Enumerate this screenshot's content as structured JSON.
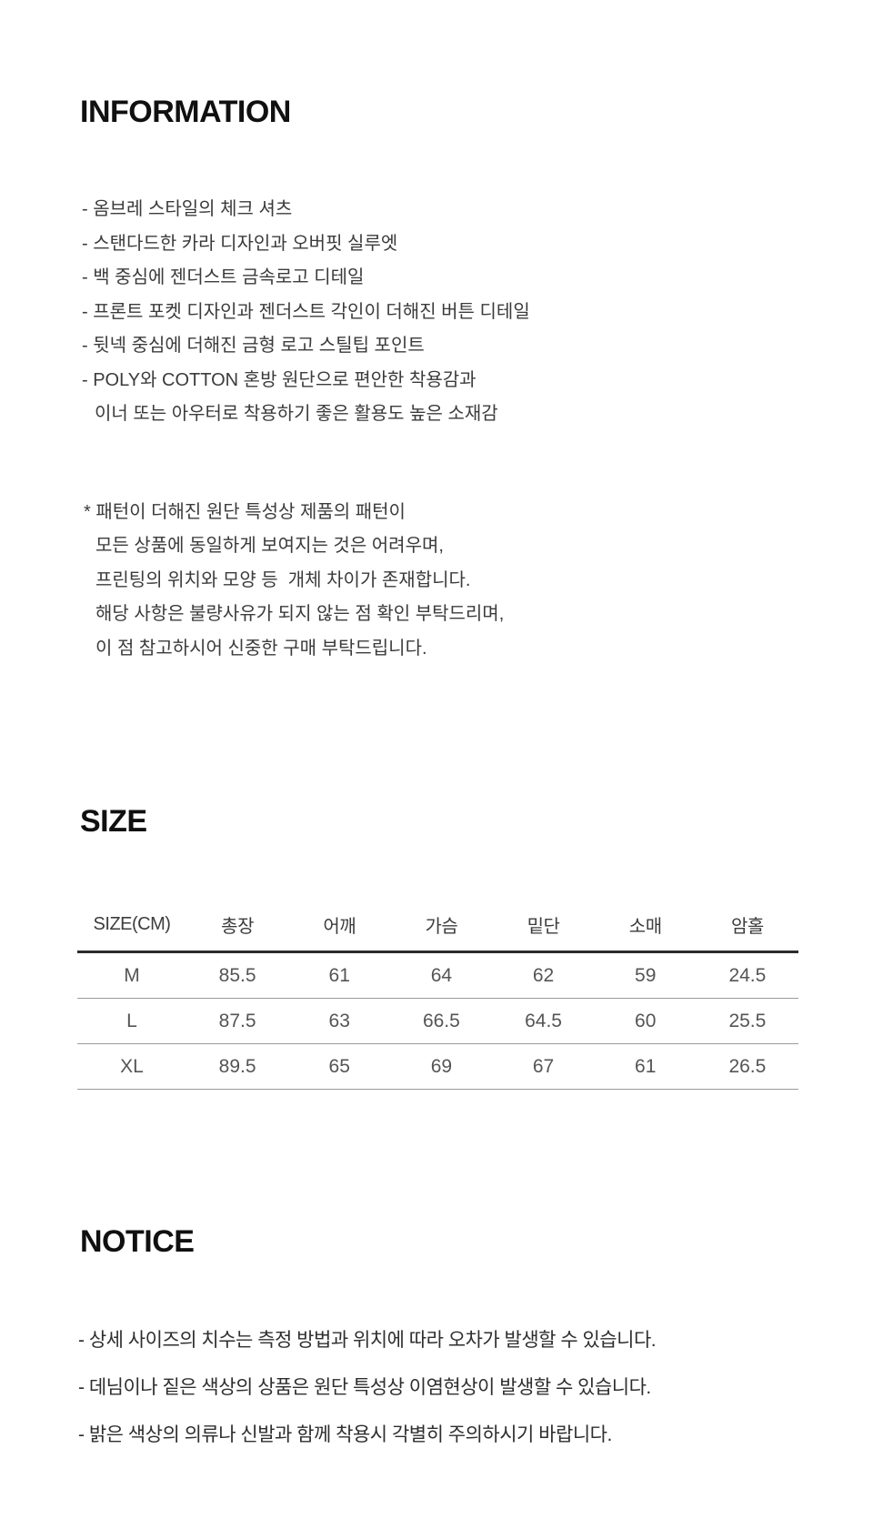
{
  "information": {
    "title": "INFORMATION",
    "bullets": [
      "- 옴브레 스타일의 체크 셔츠",
      "- 스탠다드한 카라 디자인과 오버핏 실루엣",
      "- 백 중심에 젠더스트 금속로고 디테일",
      "- 프론트 포켓 디자인과 젠더스트 각인이 더해진 버튼 디테일",
      "- 뒷넥 중심에 더해진 금형 로고 스틸팁 포인트",
      "- POLY와 COTTON 혼방 원단으로 편안한 착용감과",
      "이너 또는 아우터로 착용하기 좋은 활용도 높은 소재감"
    ],
    "caution": [
      "* 패턴이 더해진 원단 특성상 제품의 패턴이",
      "모든 상품에 동일하게 보여지는 것은 어려우며,",
      "프린팅의 위치와 모양 등  개체 차이가 존재합니다.",
      "해당 사항은 불량사유가 되지 않는 점 확인 부탁드리며,",
      "이 점 참고하시어 신중한 구매 부탁드립니다."
    ]
  },
  "size": {
    "title": "SIZE",
    "table": {
      "headers": [
        "SIZE(CM)",
        "총장",
        "어깨",
        "가슴",
        "밑단",
        "소매",
        "암홀"
      ],
      "rows": [
        {
          "label": "M",
          "values": [
            "85.5",
            "61",
            "64",
            "62",
            "59",
            "24.5"
          ]
        },
        {
          "label": "L",
          "values": [
            "87.5",
            "63",
            "66.5",
            "64.5",
            "60",
            "25.5"
          ]
        },
        {
          "label": "XL",
          "values": [
            "89.5",
            "65",
            "69",
            "67",
            "61",
            "26.5"
          ]
        }
      ]
    }
  },
  "notice": {
    "title": "NOTICE",
    "bullets": [
      "- 상세 사이즈의 치수는 측정 방법과 위치에 따라 오차가 발생할 수 있습니다.",
      "- 데님이나 짙은 색상의 상품은 원단 특성상 이염현상이 발생할 수 있습니다.",
      "- 밝은 색상의 의류나 신발과 함께 착용시 각별히 주의하시기 바랍니다."
    ]
  },
  "colors": {
    "background": "#ffffff",
    "heading": "#101010",
    "body_text": "#3b3b3b",
    "table_value_text": "#555555",
    "table_header_rule": "#2b2b2b",
    "table_row_rule": "#9b9b9b"
  }
}
